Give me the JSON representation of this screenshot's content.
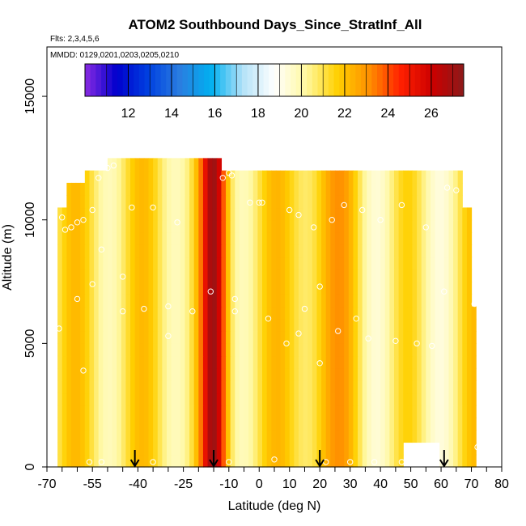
{
  "chart_data": {
    "type": "heatmap",
    "title": "ATOM2 Southbound Days_Since_StratInf_All",
    "flights_label": "Flts: 2,3,4,5,6",
    "dates_label": "MMDD: 0129,0201,0203,0205,0210",
    "xlabel": "Latitude (deg N)",
    "ylabel": "Altitude (m)",
    "xlim": [
      -70,
      80
    ],
    "ylim": [
      0,
      17000
    ],
    "x_ticks": [
      -70,
      -55,
      -40,
      -25,
      -10,
      0,
      10,
      20,
      30,
      40,
      50,
      60,
      70,
      80
    ],
    "x_tick_labels": [
      "-70",
      "-55",
      "-40",
      "-25",
      "-10",
      "0",
      "10",
      "20",
      "30",
      "40",
      "50",
      "60",
      "70",
      "80"
    ],
    "y_ticks": [
      0,
      5000,
      10000,
      15000
    ],
    "y_tick_labels": [
      "0",
      "5000",
      "10000",
      "15000"
    ],
    "colorbar": {
      "min": 10,
      "max": 27.5,
      "ticks": [
        12,
        14,
        16,
        18,
        20,
        22,
        24,
        26
      ],
      "tick_labels": [
        "12",
        "14",
        "16",
        "18",
        "20",
        "22",
        "24",
        "26"
      ],
      "colors": [
        "#8a2be2",
        "#0000cd",
        "#0040e0",
        "#2a7de0",
        "#00b0f0",
        "#b4e2f8",
        "#ffffff",
        "#fff8a0",
        "#ffd000",
        "#ff9000",
        "#ff2000",
        "#cc0000",
        "#8b1a1a"
      ]
    },
    "arrows_latitude": [
      -41,
      -15,
      20,
      61
    ],
    "observation_points": [
      {
        "lat": -65,
        "alt": 10100
      },
      {
        "lat": -64,
        "alt": 9600
      },
      {
        "lat": -62,
        "alt": 9700
      },
      {
        "lat": -60,
        "alt": 9900
      },
      {
        "lat": -58,
        "alt": 10000
      },
      {
        "lat": -55,
        "alt": 10400
      },
      {
        "lat": -53,
        "alt": 11700
      },
      {
        "lat": -50,
        "alt": 12100
      },
      {
        "lat": -48,
        "alt": 12200
      },
      {
        "lat": -52,
        "alt": 8800
      },
      {
        "lat": -55,
        "alt": 7400
      },
      {
        "lat": -45,
        "alt": 7700
      },
      {
        "lat": -42,
        "alt": 10500
      },
      {
        "lat": -35,
        "alt": 10500
      },
      {
        "lat": -45,
        "alt": 6300
      },
      {
        "lat": -38,
        "alt": 6400
      },
      {
        "lat": -30,
        "alt": 6500
      },
      {
        "lat": -27,
        "alt": 9900
      },
      {
        "lat": -22,
        "alt": 6300
      },
      {
        "lat": -16,
        "alt": 7100
      },
      {
        "lat": -12,
        "alt": 11700
      },
      {
        "lat": -10,
        "alt": 11900
      },
      {
        "lat": -9,
        "alt": 11800
      },
      {
        "lat": -3,
        "alt": 10700
      },
      {
        "lat": 0,
        "alt": 10700
      },
      {
        "lat": 1,
        "alt": 10700
      },
      {
        "lat": -8,
        "alt": 6800
      },
      {
        "lat": -8,
        "alt": 6300
      },
      {
        "lat": 3,
        "alt": 6000
      },
      {
        "lat": 10,
        "alt": 10400
      },
      {
        "lat": 13,
        "alt": 10200
      },
      {
        "lat": 18,
        "alt": 9700
      },
      {
        "lat": 20,
        "alt": 7300
      },
      {
        "lat": 24,
        "alt": 10000
      },
      {
        "lat": 28,
        "alt": 10600
      },
      {
        "lat": 34,
        "alt": 10400
      },
      {
        "lat": 40,
        "alt": 10000
      },
      {
        "lat": 47,
        "alt": 10600
      },
      {
        "lat": 55,
        "alt": 9700
      },
      {
        "lat": 62,
        "alt": 11300
      },
      {
        "lat": 65,
        "alt": 11200
      },
      {
        "lat": 61,
        "alt": 7100
      },
      {
        "lat": 71,
        "alt": 6600
      },
      {
        "lat": 9,
        "alt": 5000
      },
      {
        "lat": 13,
        "alt": 5400
      },
      {
        "lat": 20,
        "alt": 4200
      },
      {
        "lat": 26,
        "alt": 5500
      },
      {
        "lat": 36,
        "alt": 5200
      },
      {
        "lat": 45,
        "alt": 5100
      },
      {
        "lat": 52,
        "alt": 5000
      },
      {
        "lat": 57,
        "alt": 4900
      },
      {
        "lat": -58,
        "alt": 3900
      },
      {
        "lat": -56,
        "alt": 200
      },
      {
        "lat": -52,
        "alt": 200
      },
      {
        "lat": -35,
        "alt": 200
      },
      {
        "lat": -10,
        "alt": 200
      },
      {
        "lat": 5,
        "alt": 300
      },
      {
        "lat": 22,
        "alt": 200
      },
      {
        "lat": 30,
        "alt": 200
      },
      {
        "lat": 38,
        "alt": 200
      },
      {
        "lat": 47,
        "alt": 200
      },
      {
        "lat": 58,
        "alt": 800
      },
      {
        "lat": 72,
        "alt": 800
      },
      {
        "lat": -66,
        "alt": 5600
      },
      {
        "lat": -60,
        "alt": 6800
      },
      {
        "lat": -30,
        "alt": 5300
      },
      {
        "lat": 15,
        "alt": 6400
      },
      {
        "lat": 32,
        "alt": 6000
      }
    ]
  }
}
